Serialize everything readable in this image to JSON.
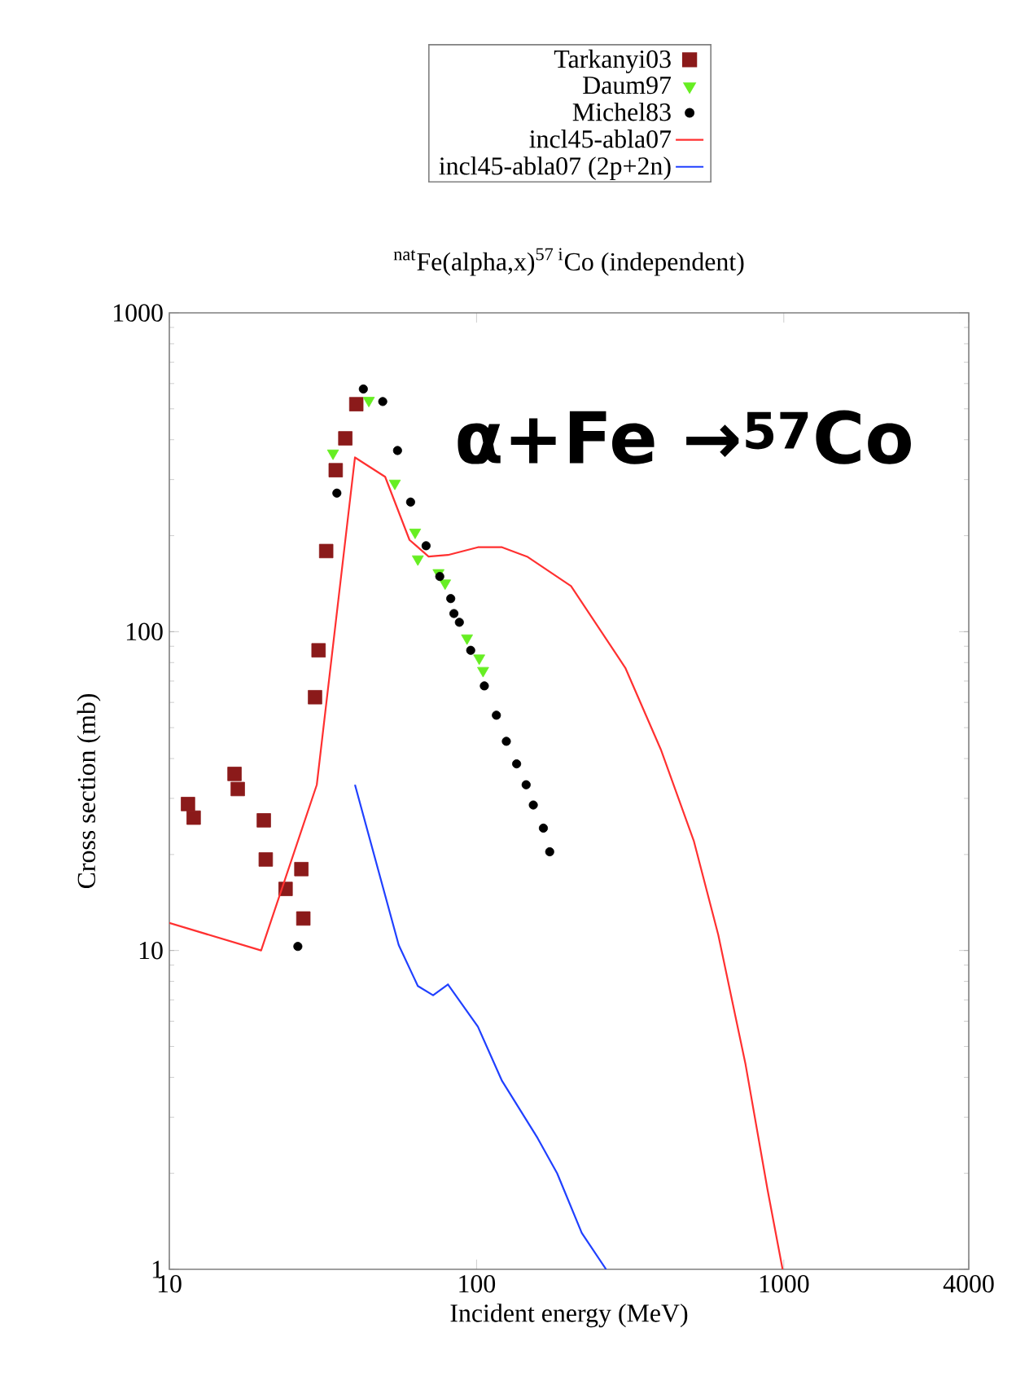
{
  "chart_data": {
    "type": "scatter",
    "title": "$^{nat}$Fe(alpha,x)$^{57 i}$Co (independent)",
    "xlabel": "Incident energy (MeV)",
    "ylabel": "Cross section (mb)",
    "log": "xy",
    "xlim": [
      10,
      4000
    ],
    "ylim": [
      1,
      1000
    ],
    "xticks": [
      10,
      100,
      1000,
      4000
    ],
    "yticks": [
      1,
      10,
      100,
      1000
    ],
    "grid": false,
    "legend": "top",
    "annotations": [
      "α+Fe →$^{57}$Co"
    ],
    "series": [
      {
        "name": "Tarkanyi03",
        "marker": "square",
        "color": "#8b1a1a",
        "x": [
          11.5,
          12.0,
          16.3,
          16.7,
          20.3,
          20.6,
          23.9,
          26.9,
          27.3,
          29.8,
          30.6,
          32.4,
          34.8,
          37.4,
          40.6
        ],
        "values": [
          28.8,
          26.1,
          35.8,
          32.1,
          25.6,
          19.3,
          15.6,
          18.0,
          12.6,
          62.3,
          87.4,
          179,
          321,
          404,
          517
        ]
      },
      {
        "name": "Daum97",
        "marker": "triangle",
        "color": "#66ee22",
        "x": [
          34.1,
          44.6,
          54.2,
          63.1,
          64.4,
          75.2,
          79.0,
          93.1,
          102,
          105
        ],
        "values": [
          363,
          531,
          292,
          205,
          169,
          153,
          142,
          95.5,
          82.6,
          75.5
        ]
      },
      {
        "name": "Michel83",
        "marker": "circle",
        "color": "#000000",
        "x": [
          26.2,
          35.1,
          42.8,
          49.5,
          55.3,
          61.0,
          68.5,
          75.9,
          82.4,
          84.4,
          87.9,
          95.7,
          106,
          116,
          125,
          135,
          145,
          153,
          165,
          173
        ],
        "values": [
          10.3,
          272,
          577,
          527,
          370,
          255,
          186,
          149,
          127,
          114,
          107,
          87.4,
          67.6,
          54.7,
          45.3,
          38.5,
          33.1,
          28.6,
          24.2,
          20.4
        ]
      },
      {
        "name": "incl45-abla07",
        "type": "line",
        "marker": "none",
        "line_style": "solid",
        "color": "#ff3030",
        "x": [
          10,
          19.9,
          30.2,
          40.2,
          50.4,
          60.5,
          69.8,
          80.7,
          101,
          121,
          146,
          203,
          305,
          398,
          510,
          612,
          751,
          885,
          991
        ],
        "values": [
          12.2,
          10,
          33.1,
          352,
          306,
          194,
          172,
          174,
          184,
          184,
          172,
          139,
          77.0,
          42.7,
          22,
          11.2,
          4.39,
          1.78,
          1.0
        ]
      },
      {
        "name": "incl45-abla07 (2p+2n)",
        "type": "line",
        "marker": "none",
        "line_style": "solid",
        "color": "#2040ff",
        "x": [
          40.2,
          55.8,
          64.4,
          72.2,
          80.7,
          101,
          121,
          158,
          183,
          220,
          264
        ],
        "values": [
          33.1,
          10.4,
          7.74,
          7.24,
          7.83,
          5.77,
          3.9,
          2.58,
          2.0,
          1.3,
          1.0
        ]
      }
    ]
  }
}
